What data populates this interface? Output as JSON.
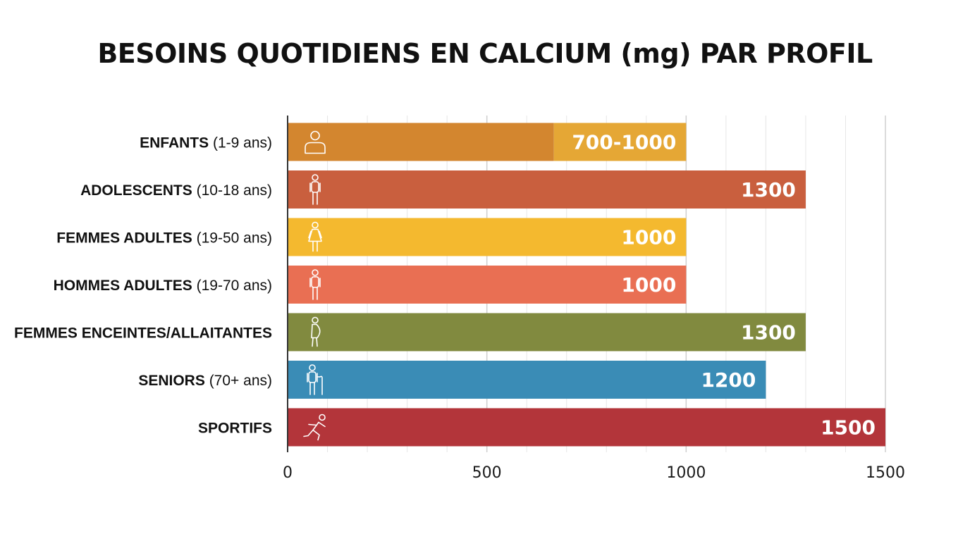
{
  "chart_data": {
    "type": "bar",
    "orientation": "horizontal",
    "title": "BESOINS QUOTIDIENS EN CALCIUM (mg) PAR PROFIL",
    "xlabel": "",
    "ylabel": "",
    "xlim": [
      0,
      1500
    ],
    "ticks": [
      0,
      500,
      1000,
      1500
    ],
    "grid": true,
    "categories": [
      {
        "name": "ENFANTS",
        "detail": " (1-9 ans)",
        "icon": "child-icon",
        "low": 700,
        "high": 1000,
        "value_label": "700-1000",
        "color": "#d3862f",
        "color_range": "#e5a735"
      },
      {
        "name": "ADOLESCENTS",
        "detail": " (10-18 ans)",
        "icon": "teen-icon",
        "value": 1300,
        "value_label": "1300",
        "color": "#c95f3e"
      },
      {
        "name": "FEMMES ADULTES",
        "detail": " (19-50 ans)",
        "icon": "woman-icon",
        "value": 1000,
        "value_label": "1000",
        "color": "#f4b92f"
      },
      {
        "name": "HOMMES ADULTES",
        "detail": " (19-70 ans)",
        "icon": "man-icon",
        "value": 1000,
        "value_label": "1000",
        "color": "#e96f53"
      },
      {
        "name": "FEMMES ENCEINTES/ALLAITANTES",
        "detail": "",
        "icon": "pregnant-woman-icon",
        "value": 1300,
        "value_label": "1300",
        "color": "#818a3f"
      },
      {
        "name": "SENIORS",
        "detail": " (70+ ans)",
        "icon": "senior-icon",
        "value": 1200,
        "value_label": "1200",
        "color": "#3a8cb6"
      },
      {
        "name": "SPORTIFS",
        "detail": "",
        "icon": "runner-icon",
        "value": 1500,
        "value_label": "1500",
        "color": "#b3353a"
      }
    ]
  }
}
